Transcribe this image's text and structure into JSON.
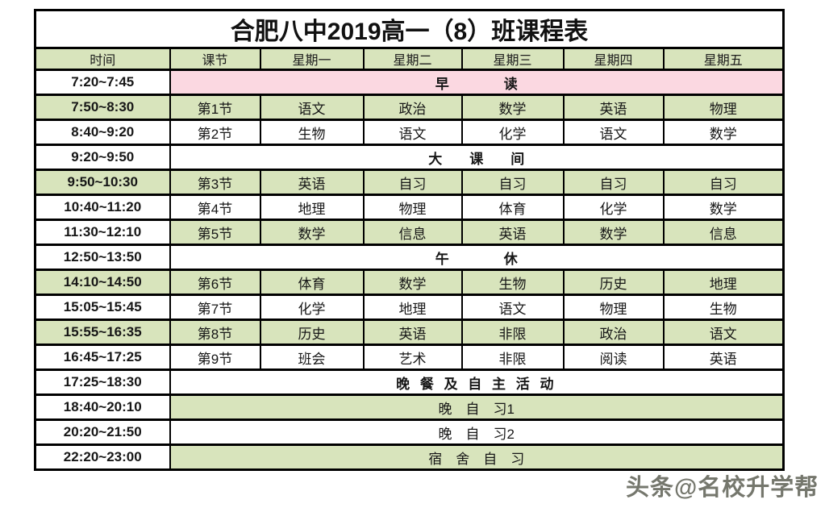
{
  "title": "合肥八中2019高一（8）班课程表",
  "watermark": "头条@名校升学帮",
  "colors": {
    "cell_green_bg": "#d8e4bc",
    "morning_reading_pink_bg": "#fbd8e1",
    "time_red_text": "#e8232b",
    "break_green_text": "#12ad52",
    "accent_red_text": "#ee1c25",
    "border_black": "#000000"
  },
  "table": {
    "headers": [
      "时间",
      "课节",
      "星期一",
      "星期二",
      "星期三",
      "星期四",
      "星期五"
    ],
    "rows": [
      {
        "time": "7:20~7:45",
        "time_bg": "white",
        "merged": {
          "text": "早　　　　读",
          "color": "red",
          "bg": "pink",
          "size": "big"
        }
      },
      {
        "time": "7:50~8:30",
        "time_bg": "green",
        "bg": "green",
        "cells": [
          "第1节",
          "语文",
          "政治",
          "数学",
          "英语",
          "物理"
        ]
      },
      {
        "time": "8:40~9:20",
        "time_bg": "white",
        "bg": "white",
        "cells": [
          "第2节",
          "生物",
          "语文",
          "化学",
          "语文",
          "数学"
        ]
      },
      {
        "time": "9:20~9:50",
        "time_bg": "white",
        "merged": {
          "text": "大　　课　　间",
          "color": "green",
          "bg": "white",
          "size": "big"
        }
      },
      {
        "time": "9:50~10:30",
        "time_bg": "green",
        "bg": "green",
        "cells": [
          "第3节",
          "英语",
          "自习",
          "自习",
          "自习",
          "自习"
        ]
      },
      {
        "time": "10:40~11:20",
        "time_bg": "white",
        "bg": "white",
        "cells": [
          "第4节",
          "地理",
          "物理",
          "体育",
          "化学",
          "数学"
        ]
      },
      {
        "time": "11:30~12:10",
        "time_bg": "white",
        "bg": "green",
        "cells": [
          "第5节",
          "数学",
          "信息",
          "英语",
          "数学",
          "信息"
        ]
      },
      {
        "time": "12:50~13:50",
        "time_bg": "white",
        "merged": {
          "text": "午　　　　休",
          "color": "red",
          "bg": "white",
          "size": "big"
        }
      },
      {
        "time": "14:10~14:50",
        "time_bg": "green",
        "bg": "green",
        "cells": [
          "第6节",
          "体育",
          "数学",
          "生物",
          "历史",
          "地理"
        ]
      },
      {
        "time": "15:05~15:45",
        "time_bg": "white",
        "bg": "white",
        "cells": [
          "第7节",
          "化学",
          "地理",
          "语文",
          "物理",
          "生物"
        ]
      },
      {
        "time": "15:55~16:35",
        "time_bg": "green",
        "bg": "green",
        "cells": [
          "第8节",
          "历史",
          "英语",
          "非限",
          "政治",
          "语文"
        ]
      },
      {
        "time": "16:45~17:25",
        "time_bg": "white",
        "bg": "white",
        "cells": [
          "第9节",
          "班会",
          "艺术",
          "非限",
          "阅读",
          "英语"
        ]
      },
      {
        "time": "17:25~18:30",
        "time_bg": "white",
        "merged": {
          "text": "晚 餐 及 自 主 活 动",
          "color": "red",
          "bg": "white",
          "size": "mid"
        }
      },
      {
        "time": "18:40~20:10",
        "time_bg": "white",
        "merged": {
          "text": "晚　自　习1",
          "color": "black",
          "bg": "green",
          "size": "reg"
        }
      },
      {
        "time": "20:20~21:50",
        "time_bg": "white",
        "merged": {
          "text": "晚　自　习2",
          "color": "black",
          "bg": "white",
          "size": "reg"
        }
      },
      {
        "time": "22:20~23:00",
        "time_bg": "white",
        "merged": {
          "text": "宿　舍　自　习",
          "color": "black",
          "bg": "green",
          "size": "reg"
        }
      }
    ]
  }
}
